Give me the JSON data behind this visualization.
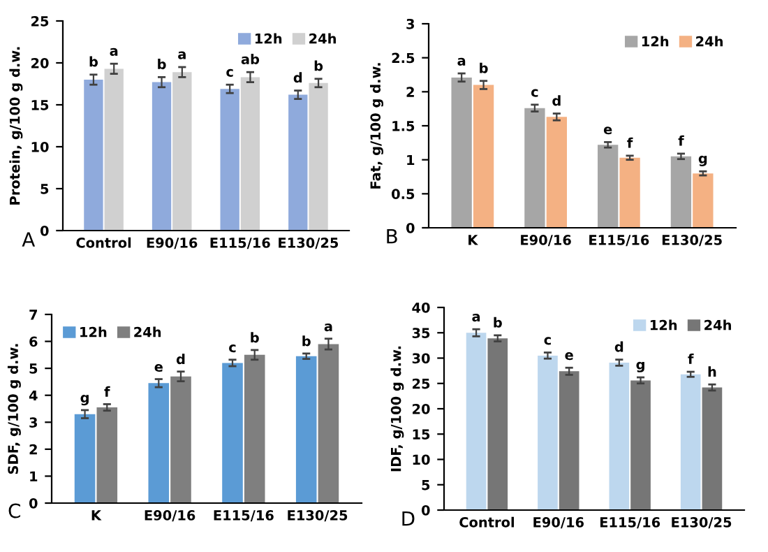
{
  "chart_data": [
    {
      "type": "bar",
      "ylabel": "Protein, g/100 g d.w.",
      "categories": [
        "Control",
        "E90/16",
        "E115/16",
        "E130/25"
      ],
      "ylim": [
        0,
        25
      ],
      "yticks": [
        0,
        5,
        10,
        15,
        20,
        25
      ],
      "legend": "top right",
      "grid": false,
      "annotations": [
        "A"
      ],
      "series": [
        {
          "name": "12h",
          "color": "#8faadc",
          "values": [
            18.0,
            17.7,
            16.9,
            16.2
          ],
          "errors": [
            0.6,
            0.6,
            0.5,
            0.5
          ],
          "value_labels": [
            "b",
            "b",
            "c",
            "d"
          ]
        },
        {
          "name": "24h",
          "color": "#d0d0d0",
          "values": [
            19.3,
            18.9,
            18.3,
            17.6
          ],
          "errors": [
            0.6,
            0.6,
            0.6,
            0.5
          ],
          "value_labels": [
            "a",
            "a",
            "ab",
            "b"
          ]
        }
      ]
    },
    {
      "type": "bar",
      "ylabel": "Fat, g/100 g d.w.",
      "categories": [
        "K",
        "E90/16",
        "E115/16",
        "E130/25"
      ],
      "ylim": [
        0,
        3
      ],
      "yticks": [
        0,
        0.5,
        1,
        1.5,
        2,
        2.5,
        3
      ],
      "legend": "top right",
      "grid": false,
      "annotations": [
        "B"
      ],
      "series": [
        {
          "name": "12h",
          "color": "#a6a6a6",
          "values": [
            2.21,
            1.76,
            1.22,
            1.05
          ],
          "errors": [
            0.06,
            0.05,
            0.04,
            0.04
          ],
          "value_labels": [
            "a",
            "c",
            "e",
            "f"
          ]
        },
        {
          "name": "24h",
          "color": "#f4b183",
          "values": [
            2.1,
            1.63,
            1.03,
            0.8
          ],
          "errors": [
            0.06,
            0.05,
            0.03,
            0.03
          ],
          "value_labels": [
            "b",
            "d",
            "f",
            "g"
          ]
        }
      ]
    },
    {
      "type": "bar",
      "ylabel": "SDF, g/100 g d.w.",
      "categories": [
        "K",
        "E90/16",
        "E115/16",
        "E130/25"
      ],
      "ylim": [
        0,
        7
      ],
      "yticks": [
        0,
        1,
        2,
        3,
        4,
        5,
        6,
        7
      ],
      "legend": "top left",
      "grid": false,
      "annotations": [
        "C"
      ],
      "series": [
        {
          "name": "12h",
          "color": "#5b9bd5",
          "values": [
            3.3,
            4.45,
            5.2,
            5.45
          ],
          "errors": [
            0.15,
            0.15,
            0.12,
            0.1
          ],
          "value_labels": [
            "g",
            "e",
            "c",
            "b"
          ]
        },
        {
          "name": "24h",
          "color": "#7f7f7f",
          "values": [
            3.55,
            4.7,
            5.5,
            5.9
          ],
          "errors": [
            0.12,
            0.18,
            0.18,
            0.2
          ],
          "value_labels": [
            "f",
            "d",
            "b",
            "a"
          ]
        }
      ]
    },
    {
      "type": "bar",
      "ylabel": "IDF, g/100 g d.w.",
      "categories": [
        "Control",
        "E90/16",
        "E115/16",
        "E130/25"
      ],
      "ylim": [
        0,
        40
      ],
      "yticks": [
        0,
        5,
        10,
        15,
        20,
        25,
        30,
        35,
        40
      ],
      "legend": "top right",
      "grid": false,
      "annotations": [
        "D"
      ],
      "series": [
        {
          "name": "12h",
          "color": "#bdd7ee",
          "values": [
            35.0,
            30.5,
            29.1,
            26.8
          ],
          "errors": [
            0.7,
            0.6,
            0.6,
            0.5
          ],
          "value_labels": [
            "a",
            "c",
            "d",
            "f"
          ]
        },
        {
          "name": "24h",
          "color": "#767676",
          "values": [
            33.9,
            27.4,
            25.6,
            24.2
          ],
          "errors": [
            0.6,
            0.7,
            0.6,
            0.6
          ],
          "value_labels": [
            "b",
            "e",
            "g",
            "h"
          ]
        }
      ]
    }
  ]
}
